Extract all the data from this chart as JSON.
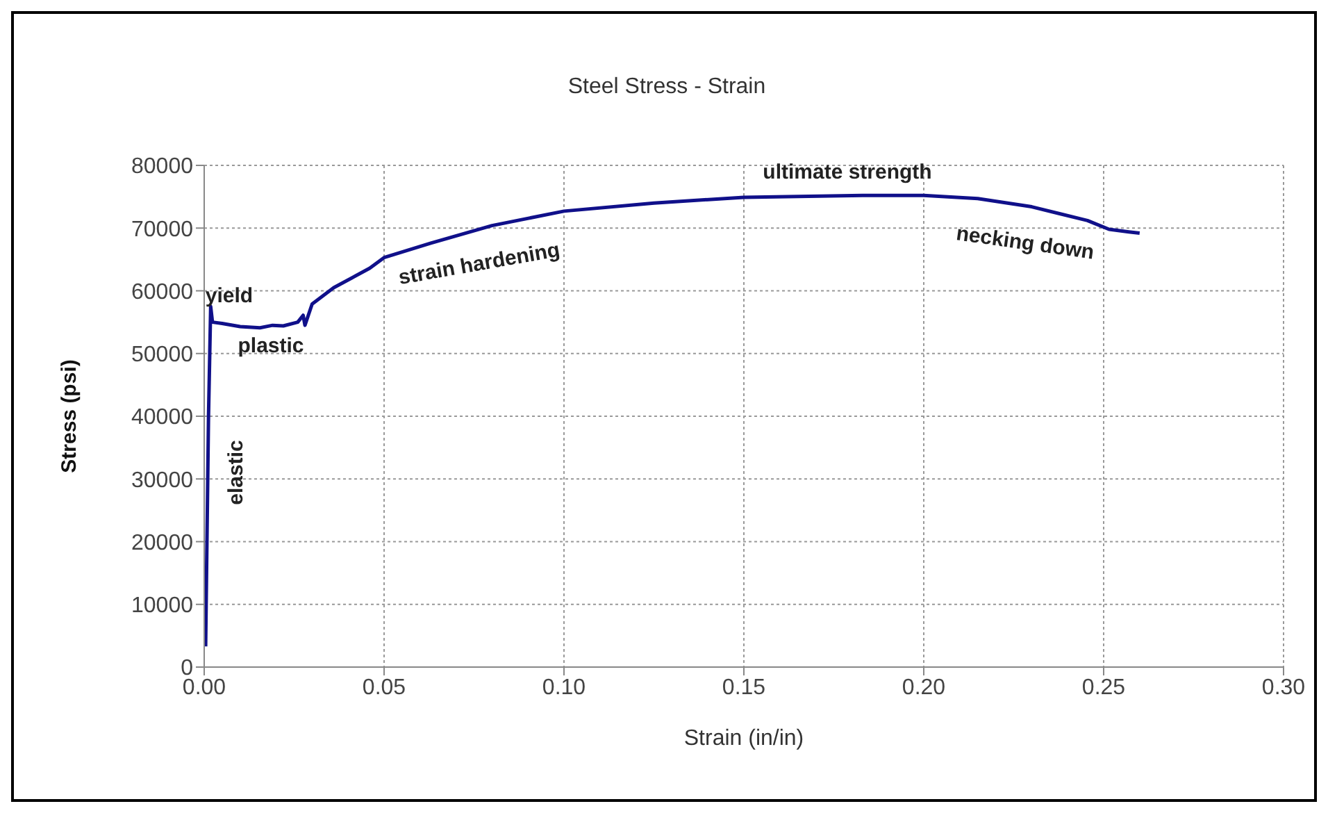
{
  "chart_data": {
    "type": "line",
    "title": "Steel Stress - Strain",
    "xlabel": "Strain (in/in)",
    "ylabel": "Stress (psi)",
    "x": [
      0.0004,
      0.0012,
      0.0018,
      0.0023,
      0.005,
      0.01,
      0.0155,
      0.019,
      0.022,
      0.026,
      0.0275,
      0.028,
      0.03,
      0.036,
      0.046,
      0.05,
      0.063,
      0.08,
      0.1,
      0.125,
      0.15,
      0.183,
      0.2,
      0.215,
      0.23,
      0.2455,
      0.2515,
      0.257,
      0.26
    ],
    "series": [
      {
        "color": "#10108a",
        "values": [
          3300,
          40000,
          57500,
          55000,
          54800,
          54300,
          54100,
          54500,
          54400,
          55000,
          56100,
          54500,
          57900,
          60500,
          63600,
          65300,
          67600,
          70400,
          72700,
          74000,
          74900,
          75200,
          75200,
          74700,
          73400,
          71200,
          69800,
          69400,
          69200
        ]
      }
    ],
    "xlim": [
      0,
      0.3
    ],
    "xticks": [
      {
        "value": 0,
        "label": "0.00"
      },
      {
        "value": 0.05,
        "label": "0.05"
      },
      {
        "value": 0.1,
        "label": "0.10"
      },
      {
        "value": 0.15,
        "label": "0.15"
      },
      {
        "value": 0.2,
        "label": "0.20"
      },
      {
        "value": 0.25,
        "label": "0.25"
      },
      {
        "value": 0.3,
        "label": "0.30"
      }
    ],
    "ylim": [
      0,
      80000
    ],
    "yticks": [
      0,
      10000,
      20000,
      30000,
      40000,
      50000,
      60000,
      70000,
      80000
    ],
    "grid": true,
    "marker": "none",
    "line_style": "solid",
    "annotations": [
      "yield",
      "plastic",
      "elastic",
      "strain hardening",
      "ultimate strength",
      "necking down"
    ]
  }
}
